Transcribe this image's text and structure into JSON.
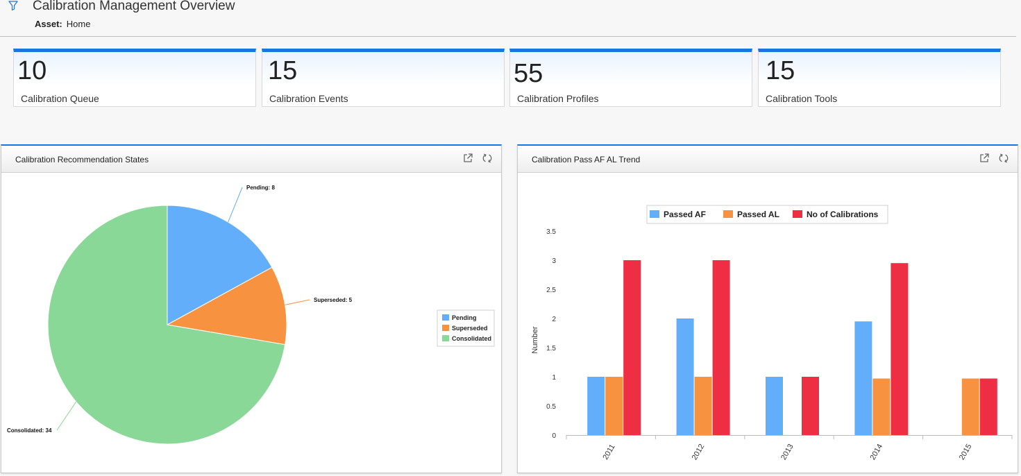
{
  "header": {
    "title": "Calibration Management Overview",
    "asset_label": "Asset:",
    "asset_value": "Home",
    "filter_icon": "filter-icon"
  },
  "tiles": [
    {
      "value": "10",
      "label": "Calibration Queue"
    },
    {
      "value": "15",
      "label": "Calibration Events"
    },
    {
      "value": "55",
      "label": "Calibration Profiles"
    },
    {
      "value": "15",
      "label": "Calibration Tools"
    }
  ],
  "panels": {
    "left": {
      "title": "Calibration Recommendation States",
      "tools": [
        "external-link-icon",
        "refresh-icon"
      ]
    },
    "right": {
      "title": "Calibration Pass AF AL Trend",
      "tools": [
        "external-link-icon",
        "refresh-icon"
      ]
    }
  },
  "colors": {
    "accent": "#1578e0",
    "blue": "#62aefa",
    "orange": "#f79240",
    "green": "#8ad897",
    "red": "#ee2e42"
  },
  "chart_data": [
    {
      "type": "pie",
      "categories": [
        "Pending",
        "Superseded",
        "Consolidated"
      ],
      "values": [
        8,
        5,
        34
      ],
      "data_labels": [
        "Pending: 8",
        "Superseded: 5",
        "Consolidated: 34"
      ],
      "legend": [
        "Pending",
        "Superseded",
        "Consolidated"
      ],
      "legend_position": "right"
    },
    {
      "type": "bar",
      "categories": [
        "2011",
        "2012",
        "2013",
        "2014",
        "2015"
      ],
      "series": [
        {
          "name": "Passed AF",
          "values": [
            1,
            2,
            1,
            1.95,
            0
          ]
        },
        {
          "name": "Passed AL",
          "values": [
            1,
            1,
            0,
            0.97,
            0.97
          ]
        },
        {
          "name": "No of Calibrations",
          "values": [
            3,
            3,
            1,
            2.95,
            0.97
          ]
        }
      ],
      "ylabel": "Number",
      "ylim": [
        0,
        3.5
      ],
      "yticks": [
        "0",
        "0.5",
        "1",
        "1.5",
        "2",
        "2.5",
        "3",
        "3.5"
      ],
      "legend_position": "top"
    }
  ]
}
